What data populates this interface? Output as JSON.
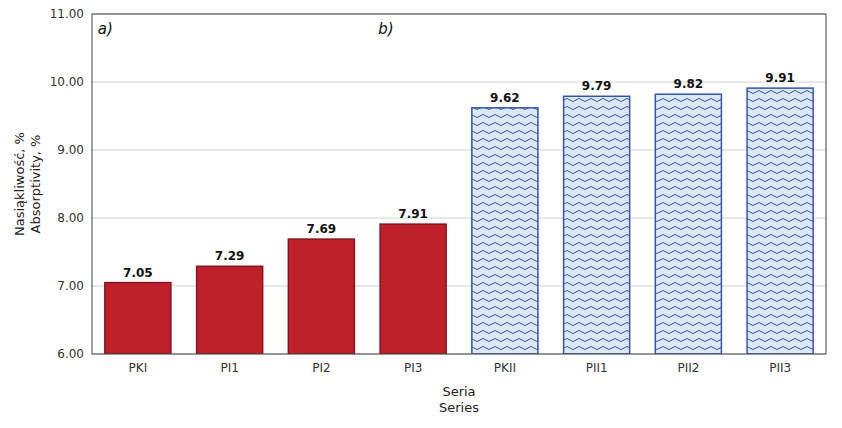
{
  "chart_data": {
    "type": "bar",
    "categories": [
      "PKI",
      "PI1",
      "PI2",
      "PI3",
      "PKII",
      "PII1",
      "PII2",
      "PII3"
    ],
    "values": [
      7.05,
      7.29,
      7.69,
      7.91,
      9.62,
      9.79,
      9.82,
      9.91
    ],
    "colors": [
      "#c0202a",
      "#c0202a",
      "#c0202a",
      "#c0202a",
      "#dce8f8",
      "#dce8f8",
      "#dce8f8",
      "#dce8f8"
    ],
    "x_label": "Seria\nSeries",
    "y_label": "Nasiąkliwość, %\nAbsorptivity, %",
    "annotations": [
      "a)",
      "b)"
    ],
    "ylim": [
      6.0,
      11.0
    ],
    "yticks": [
      {
        "value": 6.0,
        "label": "6.00"
      },
      {
        "value": 7.0,
        "label": "7.00"
      },
      {
        "value": 8.0,
        "label": "8.00"
      },
      {
        "value": 9.0,
        "label": "9.00"
      },
      {
        "value": 10.0,
        "label": "10.00"
      },
      {
        "value": 11.0,
        "label": "11.00"
      }
    ],
    "grid": true,
    "data_labels": true
  }
}
